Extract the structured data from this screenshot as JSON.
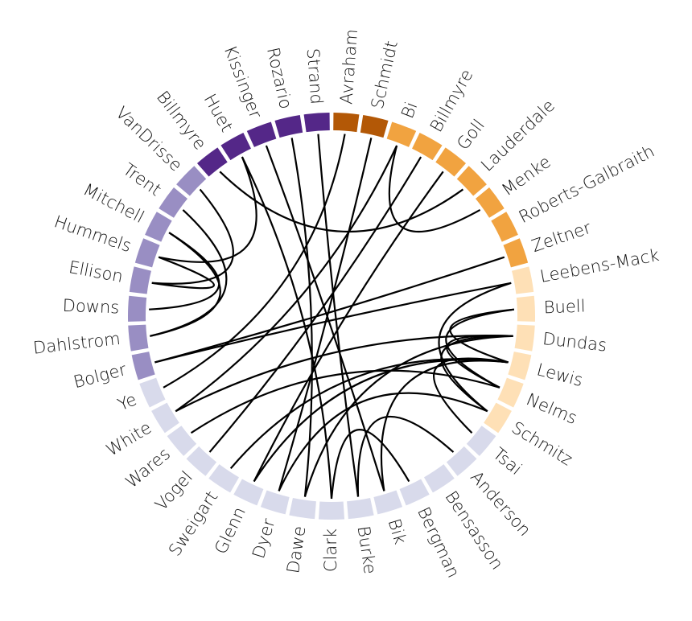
{
  "chart_data": {
    "type": "chord",
    "group_colors": {
      "g1": "#b35806",
      "g2": "#f1a340",
      "g3": "#fee0b6",
      "g4": "#d8daeb",
      "g5": "#998ec3",
      "g6": "#542788"
    },
    "chord_color": "#000000",
    "nodes": [
      {
        "name": "Avraham",
        "group": "g1"
      },
      {
        "name": "Schmidt",
        "group": "g1"
      },
      {
        "name": "Bi",
        "group": "g2"
      },
      {
        "name": "Billmyre",
        "group": "g2"
      },
      {
        "name": "Goll",
        "group": "g2"
      },
      {
        "name": "Lauderdale",
        "group": "g2"
      },
      {
        "name": "Menke",
        "group": "g2"
      },
      {
        "name": "Roberts-Galbraith",
        "group": "g2"
      },
      {
        "name": "Zeltner",
        "group": "g2"
      },
      {
        "name": "Leebens-Mack",
        "group": "g3"
      },
      {
        "name": "Buell",
        "group": "g3"
      },
      {
        "name": "Dundas",
        "group": "g3"
      },
      {
        "name": "Lewis",
        "group": "g3"
      },
      {
        "name": "Nelms",
        "group": "g3"
      },
      {
        "name": "Schmitz",
        "group": "g3"
      },
      {
        "name": "Tsai",
        "group": "g4"
      },
      {
        "name": "Anderson",
        "group": "g4"
      },
      {
        "name": "Bensasson",
        "group": "g4"
      },
      {
        "name": "Bergman",
        "group": "g4"
      },
      {
        "name": "Bik",
        "group": "g4"
      },
      {
        "name": "Burke",
        "group": "g4"
      },
      {
        "name": "Clark",
        "group": "g4"
      },
      {
        "name": "Dawe",
        "group": "g4"
      },
      {
        "name": "Dyer",
        "group": "g4"
      },
      {
        "name": "Glenn",
        "group": "g4"
      },
      {
        "name": "Sweigart",
        "group": "g4"
      },
      {
        "name": "Vogel",
        "group": "g4"
      },
      {
        "name": "Wares",
        "group": "g4"
      },
      {
        "name": "White",
        "group": "g4"
      },
      {
        "name": "Ye",
        "group": "g4"
      },
      {
        "name": "Bolger",
        "group": "g5"
      },
      {
        "name": "Dahlstrom",
        "group": "g5"
      },
      {
        "name": "Downs",
        "group": "g5"
      },
      {
        "name": "Ellison",
        "group": "g5"
      },
      {
        "name": "Hummels",
        "group": "g5"
      },
      {
        "name": "Mitchell",
        "group": "g5"
      },
      {
        "name": "Trent",
        "group": "g5"
      },
      {
        "name": "VanDrisse",
        "group": "g5"
      },
      {
        "name": "Billmyre",
        "group": "g6"
      },
      {
        "name": "Huet",
        "group": "g6"
      },
      {
        "name": "Kissinger",
        "group": "g6"
      },
      {
        "name": "Rozario",
        "group": "g6"
      },
      {
        "name": "Strand",
        "group": "g6"
      }
    ],
    "links": [
      [
        35,
        32
      ],
      [
        34,
        33
      ],
      [
        36,
        31
      ],
      [
        37,
        33
      ],
      [
        39,
        34
      ],
      [
        35,
        31
      ],
      [
        12,
        10
      ],
      [
        11,
        13
      ],
      [
        9,
        14
      ],
      [
        12,
        15
      ],
      [
        10,
        13
      ],
      [
        11,
        14
      ],
      [
        30,
        8
      ],
      [
        30,
        9
      ],
      [
        42,
        20
      ],
      [
        41,
        22
      ],
      [
        40,
        19
      ],
      [
        39,
        21
      ],
      [
        2,
        28
      ],
      [
        3,
        26
      ],
      [
        4,
        24
      ],
      [
        1,
        23
      ],
      [
        0,
        29
      ],
      [
        38,
        5
      ],
      [
        25,
        12
      ],
      [
        27,
        13
      ],
      [
        21,
        18
      ],
      [
        20,
        16
      ],
      [
        23,
        14
      ],
      [
        28,
        11
      ],
      [
        2,
        6
      ],
      [
        24,
        12
      ],
      [
        22,
        11
      ],
      [
        19,
        12
      ]
    ]
  }
}
